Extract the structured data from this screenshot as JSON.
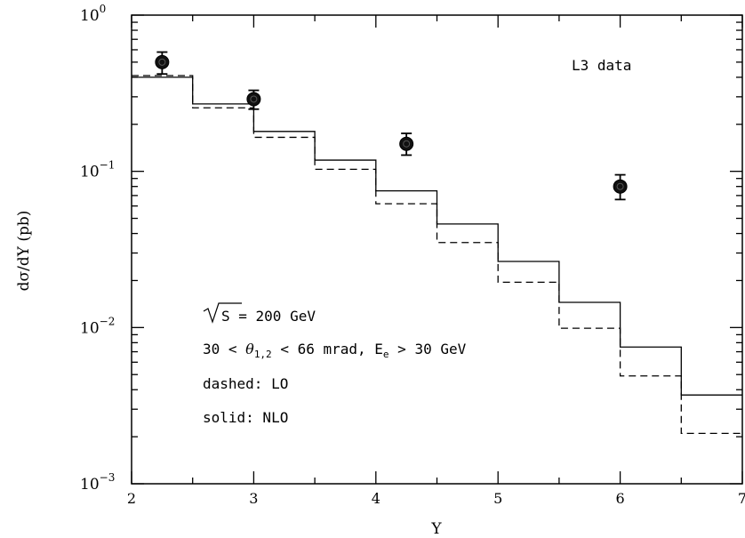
{
  "chart_data": {
    "type": "line",
    "xlabel": "Y",
    "ylabel": "dσ/dY (pb)",
    "xlim": [
      2,
      7
    ],
    "ylim": [
      0.001,
      1
    ],
    "yscale": "log",
    "x_ticks": [
      "2",
      "3",
      "4",
      "5",
      "6",
      "7"
    ],
    "y_ticks": [
      {
        "base": "10",
        "exp": "0",
        "value": 1
      },
      {
        "base": "10",
        "exp": "−1",
        "value": 0.1
      },
      {
        "base": "10",
        "exp": "−2",
        "value": 0.01
      },
      {
        "base": "10",
        "exp": "−3",
        "value": 0.001
      }
    ],
    "bin_edges": [
      2,
      2.5,
      3,
      3.5,
      4,
      4.5,
      5,
      5.5,
      6,
      6.5,
      7
    ],
    "series": [
      {
        "style": "solid",
        "values": [
          0.4,
          0.27,
          0.18,
          0.118,
          0.075,
          0.046,
          0.0265,
          0.0145,
          0.0075,
          0.0037
        ]
      },
      {
        "style": "dashed",
        "values": [
          0.41,
          0.255,
          0.165,
          0.103,
          0.062,
          0.035,
          0.0195,
          0.0099,
          0.0049,
          0.0021
        ]
      }
    ],
    "data_points": [
      {
        "x": 2.25,
        "y": 0.5,
        "ylow": 0.42,
        "yhigh": 0.58
      },
      {
        "x": 3.0,
        "y": 0.29,
        "ylow": 0.25,
        "yhigh": 0.33
      },
      {
        "x": 4.25,
        "y": 0.15,
        "ylow": 0.127,
        "yhigh": 0.175
      },
      {
        "x": 6.0,
        "y": 0.08,
        "ylow": 0.066,
        "yhigh": 0.095
      }
    ],
    "data_label": "L3 data",
    "annotations": {
      "sqrt_s": "S",
      "energy": " = 200 GeV",
      "cuts_a": "30 < ",
      "theta": "θ",
      "theta_sub": "1,2",
      "cuts_b": " < 66 mrad, E",
      "e_sub": "e",
      "cuts_c": " > 30 GeV",
      "dashed": "dashed: LO",
      "solid": "solid: NLO"
    }
  }
}
